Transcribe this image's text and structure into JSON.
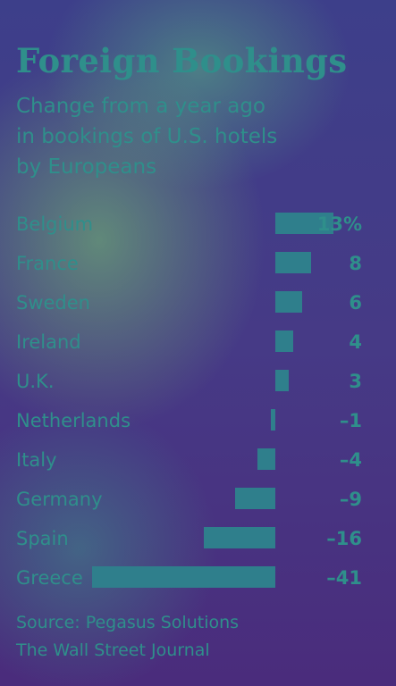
{
  "chart_data": {
    "type": "bar",
    "orientation": "horizontal",
    "title": "Foreign Bookings",
    "subtitle": [
      "Change from a year ago",
      "in bookings of U.S. hotels",
      "by Europeans"
    ],
    "categories": [
      "Belgium",
      "France",
      "Sweden",
      "Ireland",
      "U.K.",
      "Netherlands",
      "Italy",
      "Germany",
      "Spain",
      "Greece"
    ],
    "values": [
      13,
      8,
      6,
      4,
      3,
      -1,
      -4,
      -9,
      -16,
      -41
    ],
    "value_labels": [
      "13%",
      "8",
      "6",
      "4",
      "3",
      "–1",
      "–4",
      "–9",
      "–16",
      "–41"
    ],
    "xlim": [
      -41,
      13
    ],
    "grid": false,
    "legend": "none",
    "source": [
      "Source: Pegasus Solutions",
      "The Wall Street Journal"
    ]
  },
  "colors": {
    "bar": "#2f7f8c",
    "text": "#2f8f8b"
  }
}
